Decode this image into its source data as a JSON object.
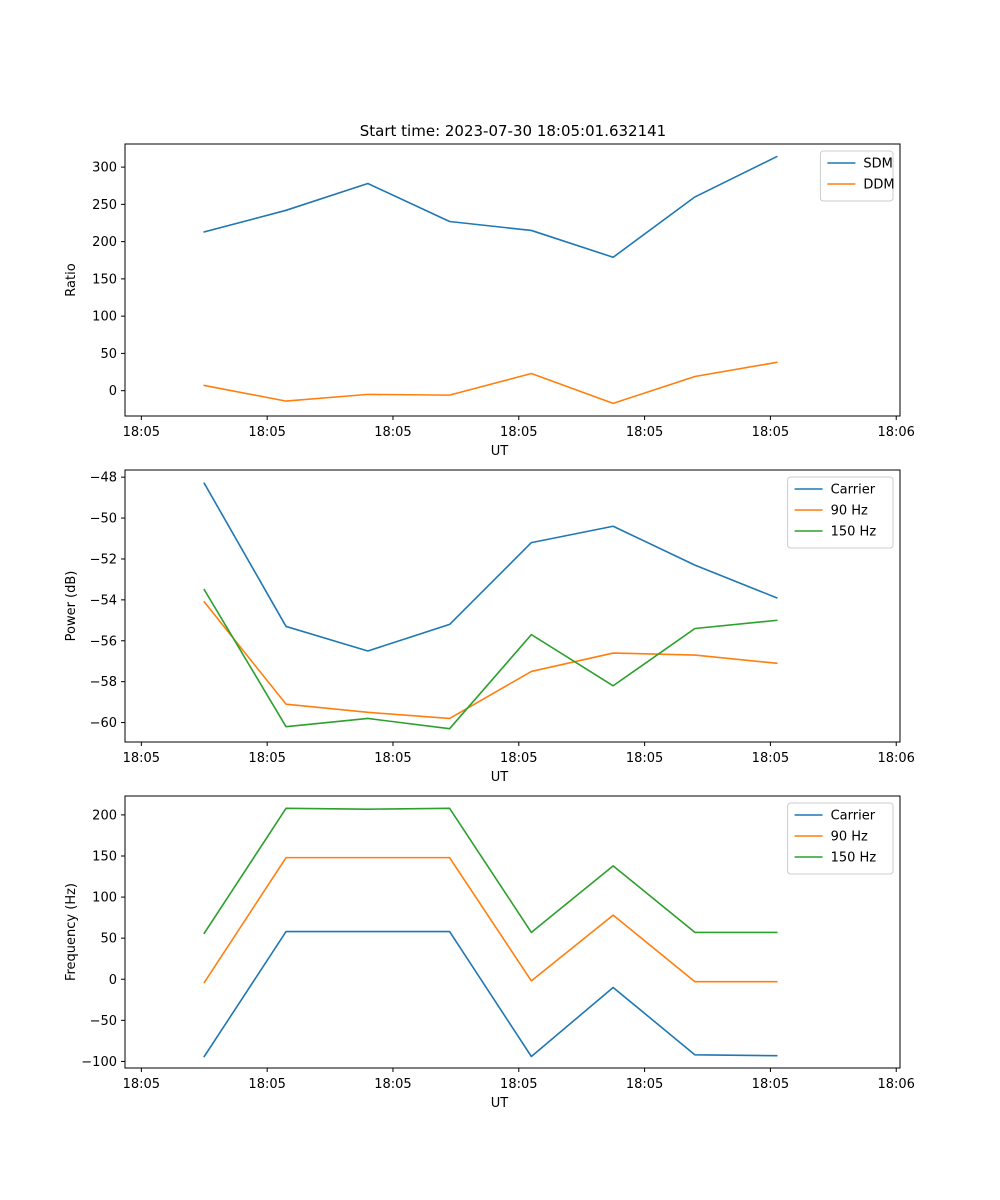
{
  "figure_title": "Start time: 2023-07-30 18:05:01.632141",
  "chart_data": [
    {
      "type": "line",
      "id": "ratio",
      "title": "Start time: 2023-07-30 18:05:01.632141",
      "xlabel": "UT",
      "ylabel": "Ratio",
      "x_tick_labels": [
        "18:05",
        "18:05",
        "18:05",
        "18:05",
        "18:05",
        "18:05",
        "18:06"
      ],
      "x_tick_values": [
        0,
        1,
        2,
        3,
        4,
        5,
        6
      ],
      "xlim": [
        -0.13,
        6.03
      ],
      "x": [
        0.5,
        1.15,
        1.8,
        2.45,
        3.1,
        3.75,
        4.4,
        5.05
      ],
      "yticks": [
        0,
        50,
        100,
        150,
        200,
        250,
        300
      ],
      "ylim": [
        -34,
        331
      ],
      "legend_position": "upper-right",
      "series": [
        {
          "name": "SDM",
          "color": "#1f77b4",
          "values": [
            213,
            242,
            278,
            227,
            215,
            179,
            260,
            314
          ]
        },
        {
          "name": "DDM",
          "color": "#ff7f0e",
          "values": [
            7,
            -14,
            -5,
            -6,
            23,
            -17,
            19,
            38
          ]
        }
      ]
    },
    {
      "type": "line",
      "id": "power",
      "xlabel": "UT",
      "ylabel": "Power (dB)",
      "x_tick_labels": [
        "18:05",
        "18:05",
        "18:05",
        "18:05",
        "18:05",
        "18:05",
        "18:06"
      ],
      "x_tick_values": [
        0,
        1,
        2,
        3,
        4,
        5,
        6
      ],
      "xlim": [
        -0.13,
        6.03
      ],
      "x": [
        0.5,
        1.15,
        1.8,
        2.45,
        3.1,
        3.75,
        4.4,
        5.05
      ],
      "yticks": [
        -60,
        -58,
        -56,
        -54,
        -52,
        -50,
        -48
      ],
      "ylim": [
        -60.95,
        -47.65
      ],
      "legend_position": "upper-right",
      "series": [
        {
          "name": "Carrier",
          "color": "#1f77b4",
          "values": [
            -48.3,
            -55.3,
            -56.5,
            -55.2,
            -51.2,
            -50.4,
            -52.3,
            -53.9
          ]
        },
        {
          "name": "90 Hz",
          "color": "#ff7f0e",
          "values": [
            -54.1,
            -59.1,
            -59.5,
            -59.8,
            -57.5,
            -56.6,
            -56.7,
            -57.1
          ]
        },
        {
          "name": "150 Hz",
          "color": "#2ca02c",
          "values": [
            -53.5,
            -60.2,
            -59.8,
            -60.3,
            -55.7,
            -58.2,
            -55.4,
            -55.0
          ]
        }
      ]
    },
    {
      "type": "line",
      "id": "frequency",
      "xlabel": "UT",
      "ylabel": "Frequency (Hz)",
      "x_tick_labels": [
        "18:05",
        "18:05",
        "18:05",
        "18:05",
        "18:05",
        "18:05",
        "18:06"
      ],
      "x_tick_values": [
        0,
        1,
        2,
        3,
        4,
        5,
        6
      ],
      "xlim": [
        -0.13,
        6.03
      ],
      "x": [
        0.5,
        1.15,
        1.8,
        2.45,
        3.1,
        3.75,
        4.4,
        5.05
      ],
      "yticks": [
        -100,
        -50,
        0,
        50,
        100,
        150,
        200
      ],
      "ylim": [
        -108,
        223
      ],
      "legend_position": "upper-right",
      "series": [
        {
          "name": "Carrier",
          "color": "#1f77b4",
          "values": [
            -94,
            58,
            58,
            58,
            -94,
            -10,
            -92,
            -93
          ]
        },
        {
          "name": "90 Hz",
          "color": "#ff7f0e",
          "values": [
            -4,
            148,
            148,
            148,
            -2,
            78,
            -3,
            -3
          ]
        },
        {
          "name": "150 Hz",
          "color": "#2ca02c",
          "values": [
            56,
            208,
            207,
            208,
            57,
            138,
            57,
            57
          ]
        }
      ]
    }
  ]
}
